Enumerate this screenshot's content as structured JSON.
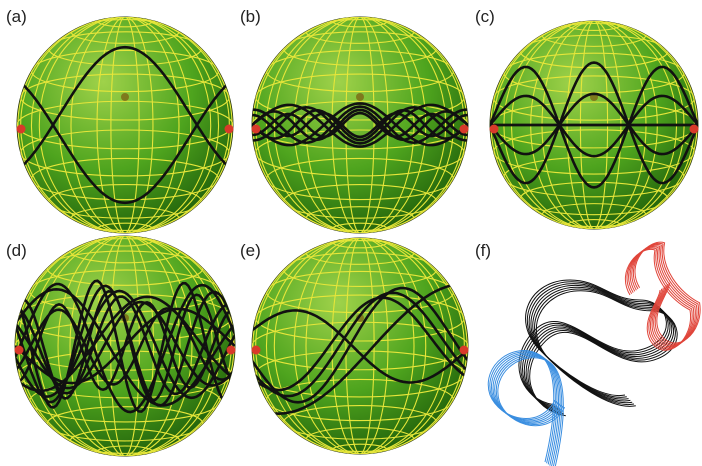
{
  "panels": {
    "a": {
      "label": "(a)"
    },
    "b": {
      "label": "(b)"
    },
    "c": {
      "label": "(c)"
    },
    "d": {
      "label": "(d)"
    },
    "e": {
      "label": "(e)"
    },
    "f": {
      "label": "(f)"
    }
  }
}
